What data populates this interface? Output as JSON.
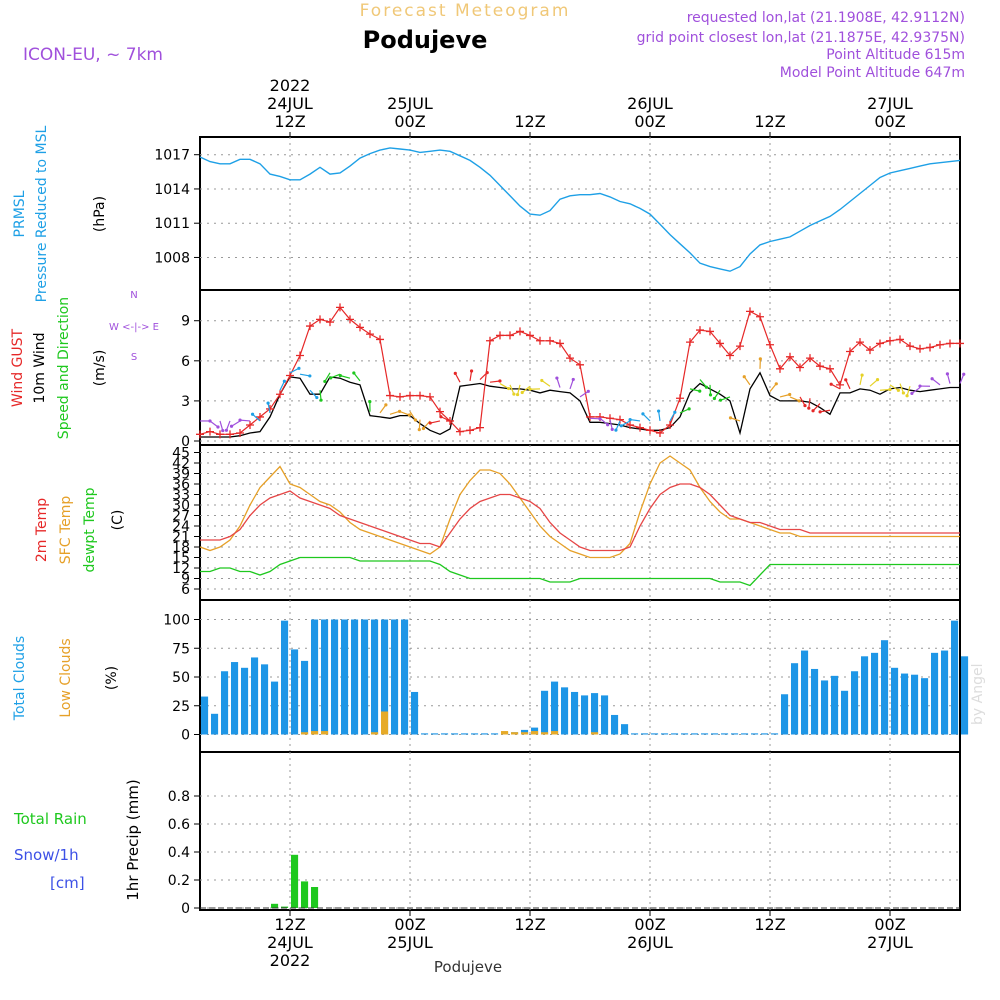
{
  "header": {
    "subtitle": "Forecast Meteogram",
    "location": "Podujeve",
    "model": "ICON-EU, ~ 7km",
    "requested": "requested lon,lat (21.1908E, 42.9112N)",
    "gridpoint": "grid point closest lon,lat (21.1875E, 42.9375N)",
    "point_alt": "Point Altitude 615m",
    "model_alt": "Model Point Altitude 647m",
    "watermark": "by Angel",
    "footer_location": "Podujeve"
  },
  "colors": {
    "pressure": "#1ea0e6",
    "gust": "#e62828",
    "wind": "#000000",
    "dir": "#1ec81e",
    "t2m": "#e64646",
    "sfc": "#e6a028",
    "dew": "#1ec81e",
    "total_clouds": "#1e96e6",
    "low_clouds": "#e6aa28",
    "rain": "#1ec81e",
    "snow": "#3c50e6",
    "title_gold": "#f0c878",
    "purple": "#a050dc",
    "label_blue": "#1ea0e6",
    "label_orange": "#e6a028",
    "label_green": "#1ec81e",
    "label_red": "#e62828"
  },
  "chart_data": [
    {
      "type": "line",
      "id": "pressure",
      "title": "PRMSL Pressure Reduced to MSL",
      "label_lines": [
        "PRMSL",
        "Pressure Reduced to MSL"
      ],
      "unit": "(hPa)",
      "x_hours": [
        0,
        1,
        2,
        3,
        4,
        5,
        6,
        7,
        8,
        9,
        10,
        11,
        12,
        13,
        14,
        15,
        16,
        17,
        18,
        19,
        20,
        21,
        22,
        23,
        24,
        25,
        26,
        27,
        28,
        29,
        30,
        31,
        32,
        33,
        34,
        35,
        36,
        37,
        38,
        39,
        40,
        41,
        42,
        43,
        44,
        45,
        46,
        47,
        48,
        49,
        50,
        51,
        52,
        53,
        54,
        55,
        56,
        57,
        58,
        59,
        60,
        61,
        62,
        63,
        64,
        65,
        66,
        67,
        68,
        69,
        70,
        71,
        72,
        73,
        74,
        75,
        76
      ],
      "values": [
        1016.8,
        1016.4,
        1016.2,
        1016.2,
        1016.6,
        1016.6,
        1016.2,
        1015.3,
        1015.1,
        1014.8,
        1014.8,
        1015.3,
        1015.9,
        1015.3,
        1015.4,
        1016.0,
        1016.7,
        1017.1,
        1017.4,
        1017.6,
        1017.5,
        1017.4,
        1017.2,
        1017.3,
        1017.4,
        1017.3,
        1016.9,
        1016.5,
        1015.9,
        1015.2,
        1014.3,
        1013.4,
        1012.5,
        1011.8,
        1011.7,
        1012.1,
        1013.1,
        1013.4,
        1013.5,
        1013.5,
        1013.6,
        1013.3,
        1012.9,
        1012.7,
        1012.3,
        1011.8,
        1010.9,
        1010.0,
        1009.2,
        1008.4,
        1007.5,
        1007.2,
        1007.0,
        1006.8,
        1007.2,
        1008.3,
        1009.1,
        1009.4,
        1009.6,
        1009.8,
        1010.3,
        1010.8,
        1011.2,
        1011.6,
        1012.2,
        1012.9,
        1013.6,
        1014.3,
        1015.0,
        1015.4,
        1015.6,
        1015.8,
        1016.0,
        1016.2,
        1016.3,
        1016.4,
        1016.5
      ],
      "ylim": [
        1005.5,
        1018.2
      ],
      "yticks": [
        1008,
        1011,
        1014,
        1017
      ]
    },
    {
      "type": "line",
      "id": "wind",
      "label_lines": [
        "Wind GUST",
        "10m Wind",
        "Speed and Direction"
      ],
      "unit": "(m/s)",
      "compass": [
        "N",
        "W <-|-> E",
        "S"
      ],
      "x_hours": [
        0,
        1,
        2,
        3,
        4,
        5,
        6,
        7,
        8,
        9,
        10,
        11,
        12,
        13,
        14,
        15,
        16,
        17,
        18,
        19,
        20,
        21,
        22,
        23,
        24,
        25,
        26,
        27,
        28,
        29,
        30,
        31,
        32,
        33,
        34,
        35,
        36,
        37,
        38,
        39,
        40,
        41,
        42,
        43,
        44,
        45,
        46,
        47,
        48,
        49,
        50,
        51,
        52,
        53,
        54,
        55,
        56,
        57,
        58,
        59,
        60,
        61,
        62,
        63,
        64,
        65,
        66,
        67,
        68,
        69,
        70,
        71,
        72,
        73,
        74,
        75,
        76
      ],
      "gust": [
        0.5,
        0.7,
        0.5,
        0.5,
        0.6,
        1.2,
        1.8,
        2.4,
        3.5,
        4.9,
        6.4,
        8.6,
        9.1,
        8.9,
        10.0,
        9.1,
        8.5,
        8.0,
        7.6,
        3.4,
        3.3,
        3.4,
        3.4,
        3.3,
        2.2,
        1.5,
        0.7,
        0.8,
        1.0,
        7.5,
        7.9,
        7.9,
        8.2,
        7.9,
        7.5,
        7.5,
        7.3,
        6.2,
        5.7,
        1.8,
        1.8,
        1.7,
        1.6,
        1.2,
        1.0,
        0.8,
        0.6,
        1.2,
        3.2,
        7.4,
        8.3,
        8.2,
        7.3,
        6.4,
        7.1,
        9.7,
        9.3,
        7.2,
        5.4,
        6.3,
        5.5,
        6.2,
        5.6,
        5.4,
        4.2,
        6.7,
        7.4,
        6.8,
        7.3,
        7.5,
        7.6,
        7.1,
        6.9,
        7.0,
        7.2,
        7.3,
        7.3
      ],
      "speed": [
        0.3,
        0.3,
        0.3,
        0.3,
        0.4,
        0.6,
        0.7,
        1.8,
        3.5,
        4.8,
        4.7,
        3.5,
        3.5,
        4.8,
        4.7,
        4.4,
        4.2,
        1.9,
        1.8,
        1.7,
        1.9,
        1.9,
        1.3,
        0.8,
        0.5,
        0.9,
        4.1,
        4.2,
        4.3,
        4.1,
        4.0,
        3.9,
        3.9,
        3.8,
        3.6,
        3.8,
        3.7,
        3.6,
        3.0,
        1.4,
        1.4,
        1.3,
        1.2,
        1.0,
        0.9,
        0.8,
        0.8,
        1.0,
        1.8,
        3.6,
        4.3,
        3.9,
        3.5,
        3.0,
        0.6,
        3.9,
        5.1,
        3.4,
        3.0,
        3.0,
        3.0,
        2.9,
        2.5,
        2.0,
        3.6,
        3.6,
        3.9,
        3.8,
        3.5,
        3.9,
        4.0,
        3.8,
        3.7,
        3.8,
        3.9,
        4.0,
        4.0
      ],
      "ylim": [
        0,
        11
      ],
      "yticks": [
        0,
        3,
        6,
        9
      ]
    },
    {
      "type": "line",
      "id": "temperature",
      "label_lines": [
        "2m Temp",
        "SFC Temp",
        "dewpt Temp"
      ],
      "unit": "(C)",
      "x_hours": [
        0,
        1,
        2,
        3,
        4,
        5,
        6,
        7,
        8,
        9,
        10,
        11,
        12,
        13,
        14,
        15,
        16,
        17,
        18,
        19,
        20,
        21,
        22,
        23,
        24,
        25,
        26,
        27,
        28,
        29,
        30,
        31,
        32,
        33,
        34,
        35,
        36,
        37,
        38,
        39,
        40,
        41,
        42,
        43,
        44,
        45,
        46,
        47,
        48,
        49,
        50,
        51,
        52,
        53,
        54,
        55,
        56,
        57,
        58,
        59,
        60,
        61,
        62,
        63,
        64,
        65,
        66,
        67,
        68,
        69,
        70,
        71,
        72,
        73,
        74,
        75,
        76
      ],
      "t2m": [
        20,
        20,
        20,
        21,
        23,
        27,
        30,
        32,
        33,
        34,
        32,
        31,
        30,
        29,
        27,
        26,
        25,
        24,
        23,
        22,
        21,
        20,
        19,
        19,
        18,
        22,
        26,
        29,
        31,
        32,
        33,
        33,
        32,
        31,
        29,
        25,
        22,
        20,
        18,
        17,
        17,
        17,
        17,
        18,
        24,
        29,
        33,
        35,
        36,
        36,
        35,
        33,
        30,
        27,
        26,
        25,
        25,
        24,
        23,
        23,
        23,
        22,
        22,
        22,
        22,
        22,
        22,
        22,
        22,
        22,
        22,
        22,
        22,
        22,
        22,
        22,
        22
      ],
      "sfc": [
        18,
        17,
        18,
        20,
        24,
        30,
        35,
        38,
        41,
        36,
        35,
        33,
        31,
        30,
        28,
        25,
        23,
        22,
        21,
        20,
        19,
        18,
        17,
        16,
        18,
        26,
        33,
        37,
        40,
        40,
        39,
        36,
        32,
        28,
        24,
        21,
        19,
        17,
        16,
        15,
        15,
        15,
        16,
        19,
        28,
        36,
        42,
        44,
        42,
        40,
        35,
        31,
        28,
        26,
        26,
        25,
        24,
        23,
        22,
        22,
        21,
        21,
        21,
        21,
        21,
        21,
        21,
        21,
        21,
        21,
        21,
        21,
        21,
        21,
        21,
        21,
        21
      ],
      "dew": [
        11,
        11,
        12,
        12,
        11,
        11,
        10,
        11,
        13,
        14,
        15,
        15,
        15,
        15,
        15,
        15,
        14,
        14,
        14,
        14,
        14,
        14,
        14,
        14,
        13,
        11,
        10,
        9,
        9,
        9,
        9,
        9,
        9,
        9,
        9,
        8,
        8,
        8,
        9,
        9,
        9,
        9,
        9,
        9,
        9,
        9,
        9,
        9,
        9,
        9,
        9,
        9,
        8,
        8,
        8,
        7,
        10,
        13,
        13,
        13,
        13,
        13,
        13,
        13,
        13,
        13,
        13,
        13,
        13,
        13,
        13,
        13,
        13,
        13,
        13,
        13,
        13
      ],
      "ylim": [
        4,
        46
      ],
      "yticks": [
        6,
        9,
        12,
        15,
        18,
        21,
        24,
        27,
        30,
        33,
        36,
        39,
        42,
        45
      ]
    },
    {
      "type": "bar",
      "id": "clouds",
      "label_lines": [
        "Total Clouds",
        "Low Clouds"
      ],
      "unit": "(%)",
      "x_hours": [
        0,
        1,
        2,
        3,
        4,
        5,
        6,
        7,
        8,
        9,
        10,
        11,
        12,
        13,
        14,
        15,
        16,
        17,
        18,
        19,
        20,
        21,
        22,
        23,
        24,
        25,
        26,
        27,
        28,
        29,
        30,
        31,
        32,
        33,
        34,
        35,
        36,
        37,
        38,
        39,
        40,
        41,
        42,
        43,
        44,
        45,
        46,
        47,
        48,
        49,
        50,
        51,
        52,
        53,
        54,
        55,
        56,
        57,
        58,
        59,
        60,
        61,
        62,
        63,
        64,
        65,
        66,
        67,
        68,
        69,
        70,
        71,
        72,
        73,
        74,
        75,
        76
      ],
      "total": [
        33,
        18,
        55,
        63,
        58,
        67,
        61,
        46,
        99,
        74,
        64,
        100,
        100,
        100,
        100,
        100,
        100,
        100,
        100,
        100,
        100,
        37,
        1,
        1,
        1,
        1,
        1,
        1,
        1,
        1,
        2,
        2,
        4,
        6,
        38,
        46,
        41,
        37,
        34,
        36,
        34,
        17,
        9,
        1,
        1,
        1,
        1,
        1,
        1,
        1,
        1,
        1,
        1,
        1,
        1,
        1,
        1,
        1,
        35,
        62,
        73,
        57,
        47,
        51,
        38,
        55,
        68,
        71,
        82,
        58,
        53,
        52,
        49,
        71,
        73,
        99,
        68
      ],
      "low": [
        0,
        0,
        0,
        0,
        0,
        0,
        0,
        0,
        0,
        0,
        2,
        3,
        3,
        0,
        0,
        0,
        0,
        2,
        20,
        0,
        0,
        0,
        0,
        0,
        0,
        0,
        0,
        0,
        0,
        0,
        3,
        2,
        2,
        3,
        2,
        3,
        0,
        0,
        0,
        2,
        0,
        0,
        0,
        0,
        0,
        0,
        0,
        0,
        0,
        0,
        0,
        0,
        0,
        0,
        0,
        0,
        0,
        0,
        0,
        0,
        0,
        0,
        0,
        0,
        0,
        0,
        0,
        0,
        0,
        0,
        0,
        0,
        0,
        0,
        0,
        0,
        0
      ],
      "ylim": [
        -10,
        110
      ],
      "yticks": [
        0,
        25,
        50,
        75,
        100
      ]
    },
    {
      "type": "bar",
      "id": "precip",
      "label_lines": [
        "Total Rain",
        "Snow/1h",
        "[cm]"
      ],
      "ylabel": "1hr Precip (mm)",
      "x_hours": [
        7,
        8,
        9,
        10,
        11
      ],
      "values": [
        0.03,
        0.01,
        0.38,
        0.19,
        0.15
      ],
      "ylim": [
        0,
        1.0
      ],
      "yticks": [
        0,
        0.2,
        0.4,
        0.6,
        0.8
      ]
    }
  ],
  "time_axis": {
    "top_labels": [
      {
        "hour": 9,
        "lines": [
          "2022",
          "24JUL",
          "12Z"
        ]
      },
      {
        "hour": 21,
        "lines": [
          "25JUL",
          "00Z"
        ]
      },
      {
        "hour": 33,
        "lines": [
          "12Z"
        ]
      },
      {
        "hour": 45,
        "lines": [
          "26JUL",
          "00Z"
        ]
      },
      {
        "hour": 57,
        "lines": [
          "12Z"
        ]
      },
      {
        "hour": 69,
        "lines": [
          "27JUL",
          "00Z"
        ]
      }
    ],
    "bottom_labels": [
      {
        "hour": 9,
        "lines": [
          "12Z",
          "24JUL",
          "2022"
        ]
      },
      {
        "hour": 21,
        "lines": [
          "00Z",
          "25JUL"
        ]
      },
      {
        "hour": 33,
        "lines": [
          "12Z"
        ]
      },
      {
        "hour": 45,
        "lines": [
          "00Z",
          "26JUL"
        ]
      },
      {
        "hour": 57,
        "lines": [
          "12Z"
        ]
      },
      {
        "hour": 69,
        "lines": [
          "00Z",
          "27JUL"
        ]
      }
    ],
    "grid_hours": [
      9,
      21,
      33,
      45,
      57,
      69
    ]
  }
}
